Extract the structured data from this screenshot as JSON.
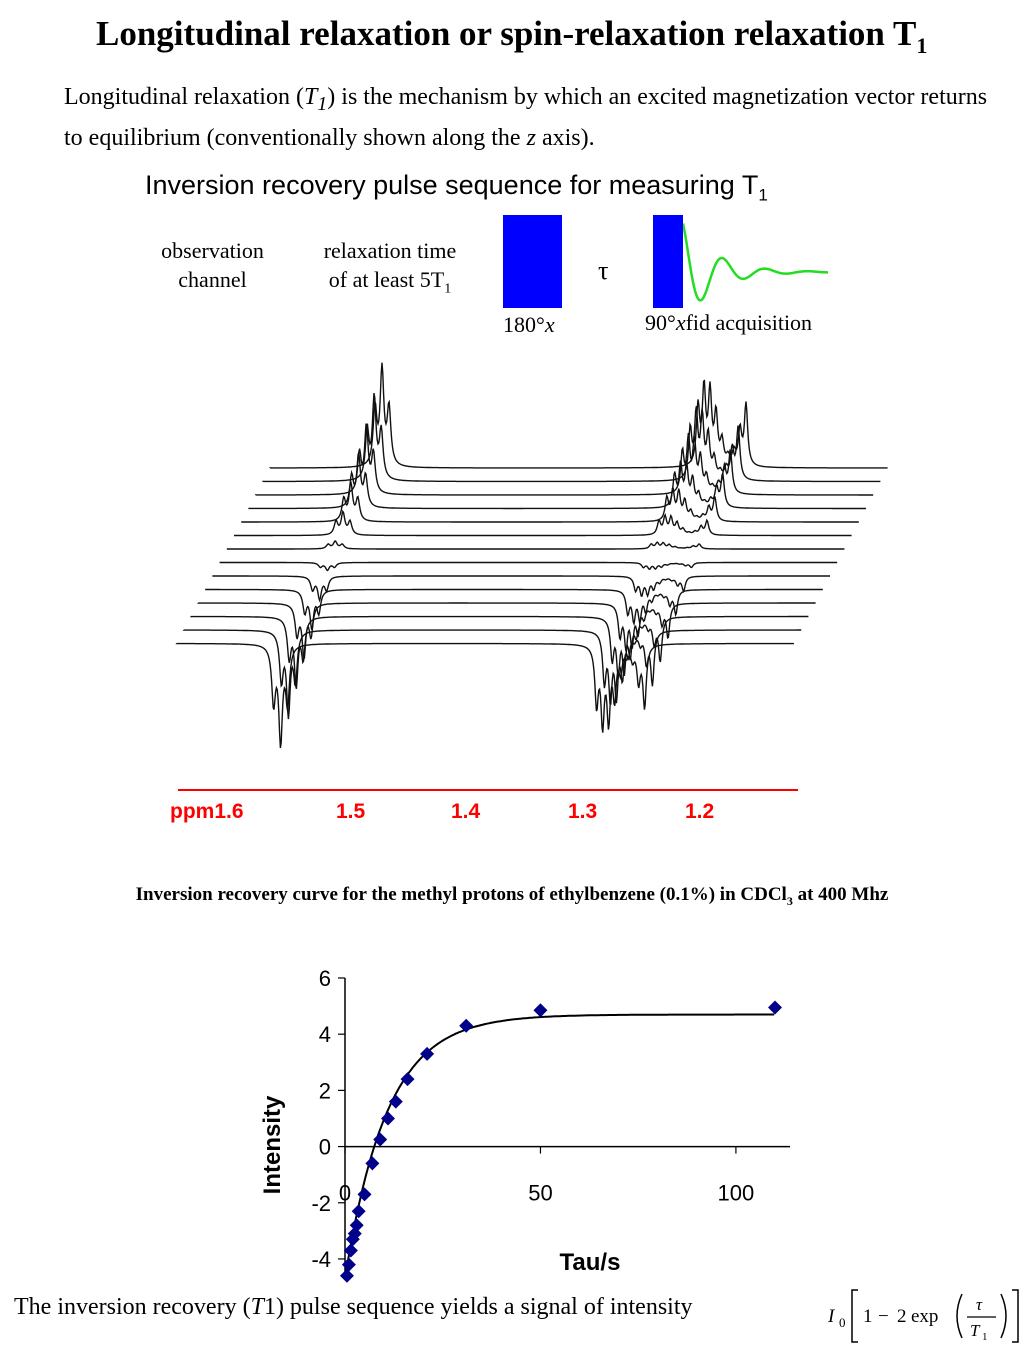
{
  "title": {
    "main": "Longitudinal relaxation or spin-relaxation relaxation T",
    "sub": "1"
  },
  "intro": {
    "p1": "Longitudinal relaxation (",
    "t": "T",
    "t_sub": "1",
    "p2": ") is the mechanism by which an excited magnetization vector returns to equilibrium (conventionally shown along the ",
    "z": "z",
    "p3": " axis)."
  },
  "pulse_sequence": {
    "title": "Inversion recovery pulse sequence for measuring T",
    "title_sub": "1",
    "observation_line1": "observation",
    "observation_line2": "channel",
    "relax_line1": "relaxation time",
    "relax_line2": "of at least 5T",
    "relax_sub": "1",
    "tau": "τ",
    "pulse180_num": "180°",
    "pulse180_axis": "x",
    "pulse90_num": "90°",
    "pulse90_axis": "x",
    "fid_label": "fid acquisition",
    "pulse_color": "#0000ff",
    "fid_color": "#22dd22"
  },
  "spectra": {
    "axis_color": "#ff0000",
    "axis_unit": "ppm",
    "ticks": [
      "1.6",
      "1.5",
      "1.4",
      "1.3",
      "1.2"
    ]
  },
  "curve_caption": {
    "main": "Inversion recovery curve for the methyl protons of ethylbenzene (0.1%) in CDCl",
    "sub": "3",
    "tail": " at 400 Mhz"
  },
  "chart_data": {
    "type": "scatter",
    "xlabel": "Tau/s",
    "ylabel": "Intensity",
    "xlim": [
      0,
      110
    ],
    "ylim": [
      -4.5,
      6
    ],
    "xticks": [
      "0",
      "50",
      "100"
    ],
    "yticks": [
      "-4",
      "-2",
      "0",
      "2",
      "4",
      "6"
    ],
    "marker_color": "#00008b",
    "points": [
      {
        "x": 0.5,
        "y": -4.6
      },
      {
        "x": 1,
        "y": -4.2
      },
      {
        "x": 1.5,
        "y": -3.7
      },
      {
        "x": 2,
        "y": -3.3
      },
      {
        "x": 2.5,
        "y": -3.1
      },
      {
        "x": 3,
        "y": -2.8
      },
      {
        "x": 3.5,
        "y": -2.3
      },
      {
        "x": 5,
        "y": -1.7
      },
      {
        "x": 7,
        "y": -0.6
      },
      {
        "x": 9,
        "y": 0.25
      },
      {
        "x": 11,
        "y": 1.0
      },
      {
        "x": 13,
        "y": 1.6
      },
      {
        "x": 16,
        "y": 2.4
      },
      {
        "x": 21,
        "y": 3.3
      },
      {
        "x": 31,
        "y": 4.3
      },
      {
        "x": 50,
        "y": 4.85
      },
      {
        "x": 110,
        "y": 4.95
      }
    ],
    "fit": {
      "I0": 4.7,
      "T1": 10.8
    }
  },
  "footer": {
    "p1": "The inversion recovery (",
    "t": "T",
    "p2": "1) pulse sequence yields a signal of intensity"
  },
  "formula": {
    "I": "I",
    "zero": "0",
    "one": "1",
    "minus": "−",
    "two": "2",
    "exp": "exp",
    "tau": "τ",
    "T": "T",
    "T_sub": "1"
  }
}
